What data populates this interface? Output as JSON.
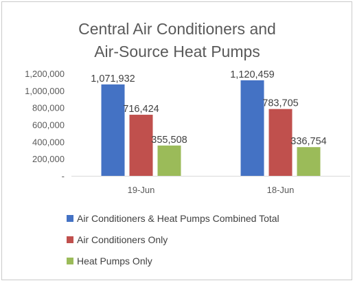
{
  "chart_data": {
    "type": "bar",
    "title_lines": [
      "Central Air Conditioners and",
      "Air-Source Heat Pumps"
    ],
    "categories": [
      "19-Jun",
      "18-Jun"
    ],
    "series": [
      {
        "name": "Air Conditioners & Heat Pumps Combined Total",
        "color": "#4472C4",
        "values": [
          1071932,
          1120459
        ],
        "labels": [
          "1,071,932",
          "1,120,459"
        ]
      },
      {
        "name": "Air Conditioners Only",
        "color": "#C0504D",
        "values": [
          716424,
          783705
        ],
        "labels": [
          "716,424",
          "783,705"
        ]
      },
      {
        "name": "Heat Pumps Only",
        "color": "#9BBB59",
        "values": [
          355508,
          336754
        ],
        "labels": [
          "355,508",
          "336,754"
        ]
      }
    ],
    "ylim": [
      0,
      1200000
    ],
    "yticks": [
      {
        "value": 0,
        "label": "-"
      },
      {
        "value": 200000,
        "label": "200,000"
      },
      {
        "value": 400000,
        "label": "400,000"
      },
      {
        "value": 600000,
        "label": "600,000"
      },
      {
        "value": 800000,
        "label": "800,000"
      },
      {
        "value": 1000000,
        "label": "1,000,000"
      },
      {
        "value": 1200000,
        "label": "1,200,000"
      }
    ],
    "grid": false,
    "legend_position": "bottom"
  }
}
